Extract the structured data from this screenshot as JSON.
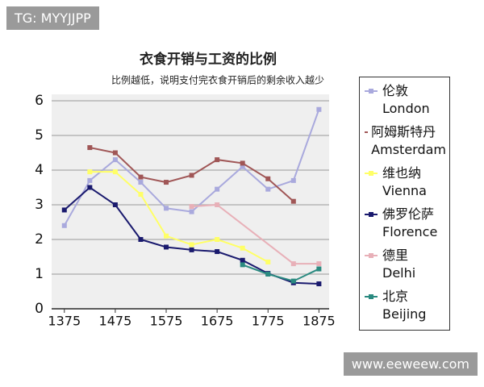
{
  "watermark_top": "TG: MYYJJPP",
  "watermark_bottom": "www.eeweew.com",
  "chart_data": {
    "type": "line",
    "title": "衣食开销与工资的比例",
    "subtitle": "比例越低，说明支付完衣食开销后的剩余收入越少",
    "xlim": [
      1350,
      1895
    ],
    "xticks": [
      1375,
      1475,
      1575,
      1675,
      1775,
      1875
    ],
    "ylim": [
      0,
      6
    ],
    "yticks": [
      0,
      1,
      2,
      3,
      4,
      5,
      6
    ],
    "grid": true,
    "series": [
      {
        "name": "伦敦\nLondon",
        "color": "#a9a9dd",
        "x": [
          1375,
          1425,
          1475,
          1525,
          1575,
          1625,
          1675,
          1725,
          1775,
          1825,
          1875
        ],
        "values": [
          2.4,
          3.7,
          4.3,
          3.65,
          2.9,
          2.8,
          3.45,
          4.1,
          3.45,
          3.7,
          5.75
        ]
      },
      {
        "name": "阿姆斯特丹\nAmsterdam",
        "color": "#a05656",
        "x": [
          1425,
          1475,
          1525,
          1575,
          1625,
          1675,
          1725,
          1775,
          1825
        ],
        "values": [
          4.65,
          4.5,
          3.8,
          3.65,
          3.85,
          4.3,
          4.2,
          3.75,
          3.1
        ]
      },
      {
        "name": "维也纳\nVienna",
        "color": "#ffff66",
        "x": [
          1425,
          1475,
          1525,
          1575,
          1625,
          1675,
          1725,
          1775
        ],
        "values": [
          3.95,
          3.95,
          3.3,
          2.1,
          1.85,
          2.0,
          1.75,
          1.35
        ]
      },
      {
        "name": "佛罗伦萨\nFlorence",
        "color": "#1a1a6e",
        "x": [
          1375,
          1425,
          1475,
          1525,
          1575,
          1625,
          1675,
          1725,
          1775,
          1825,
          1875
        ],
        "values": [
          2.85,
          3.5,
          3.0,
          2.0,
          1.78,
          1.7,
          1.65,
          1.4,
          1.02,
          0.75,
          0.72
        ]
      },
      {
        "name": "德里\nDelhi",
        "color": "#e8b0b8",
        "x": [
          1625,
          1675,
          1825,
          1875
        ],
        "values": [
          2.95,
          3.0,
          1.3,
          1.3
        ]
      },
      {
        "name": "北京\nBeijing",
        "color": "#2a8a80",
        "x": [
          1725,
          1775,
          1825,
          1875
        ],
        "values": [
          1.27,
          1.0,
          0.8,
          1.15
        ]
      }
    ]
  }
}
